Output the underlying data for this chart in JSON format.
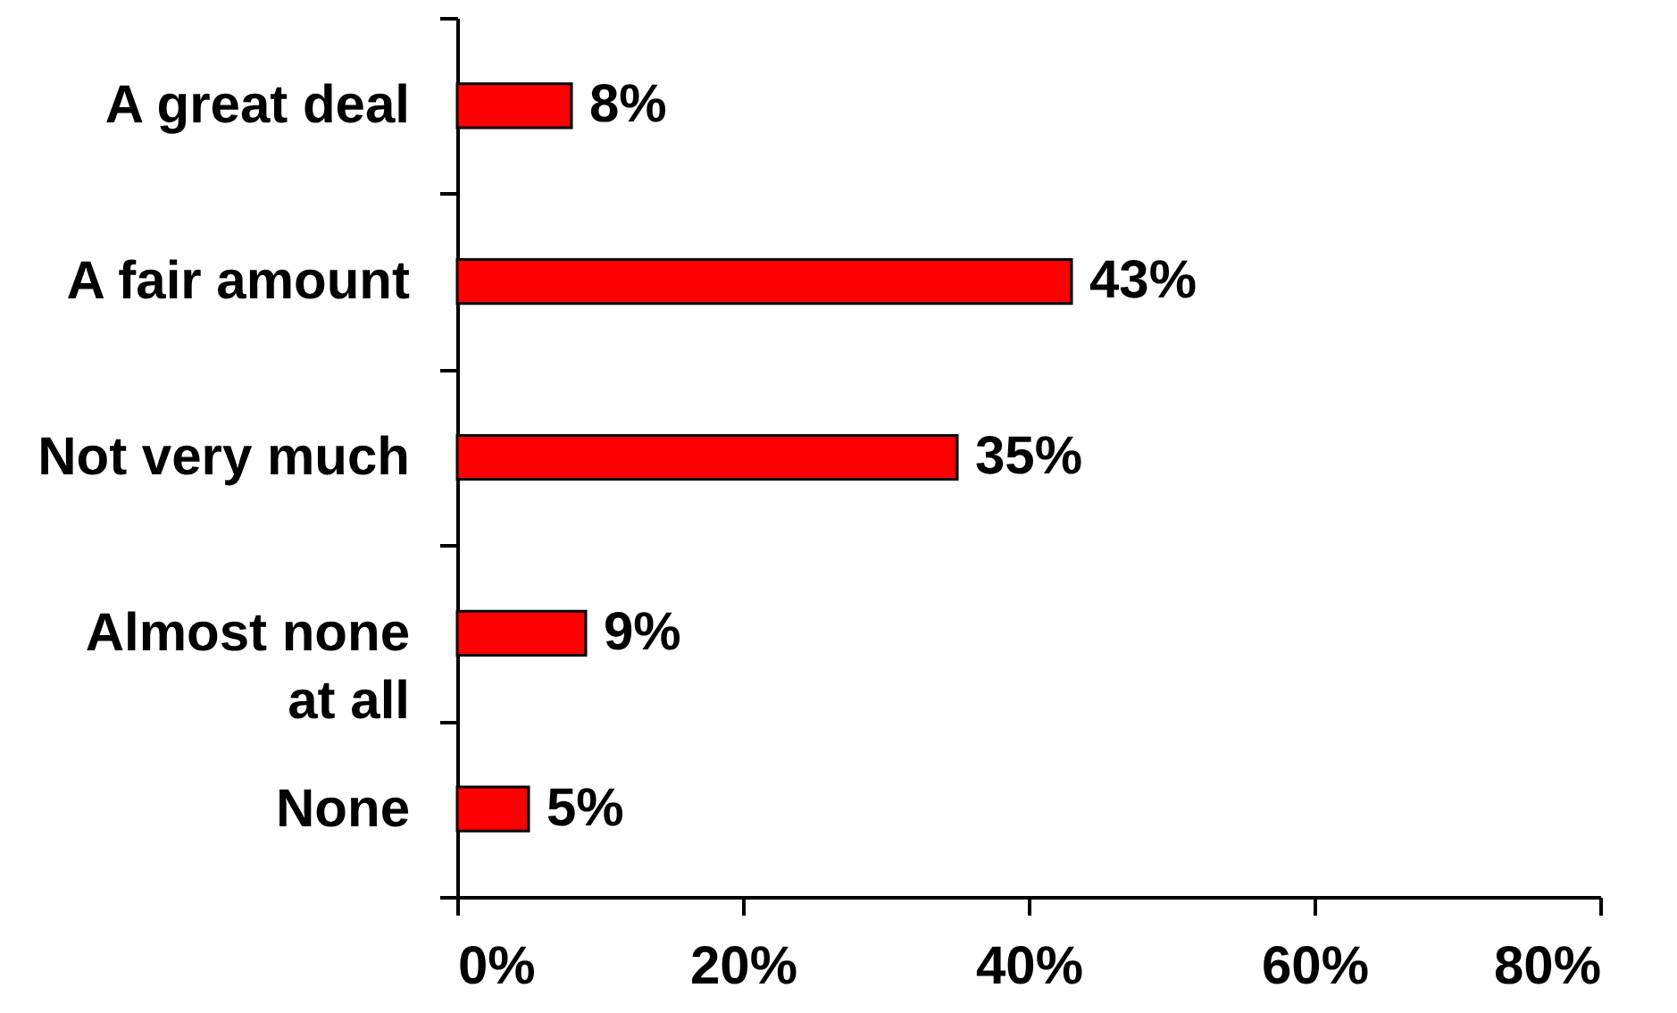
{
  "chart_data": {
    "type": "bar",
    "orientation": "horizontal",
    "categories": [
      "A great deal",
      "A fair amount",
      "Not very much",
      "Almost none at all",
      "None"
    ],
    "values": [
      8,
      43,
      35,
      9,
      5
    ],
    "value_labels": [
      "8%",
      "43%",
      "35%",
      "9%",
      "5%"
    ],
    "color": "#ff0000",
    "xlim": [
      0,
      80
    ],
    "xticks": [
      {
        "value": 0,
        "label": "0%"
      },
      {
        "value": 20,
        "label": "20%"
      },
      {
        "value": 40,
        "label": "40%"
      },
      {
        "value": 60,
        "label": "60%"
      },
      {
        "value": 80,
        "label": "80%"
      }
    ]
  }
}
